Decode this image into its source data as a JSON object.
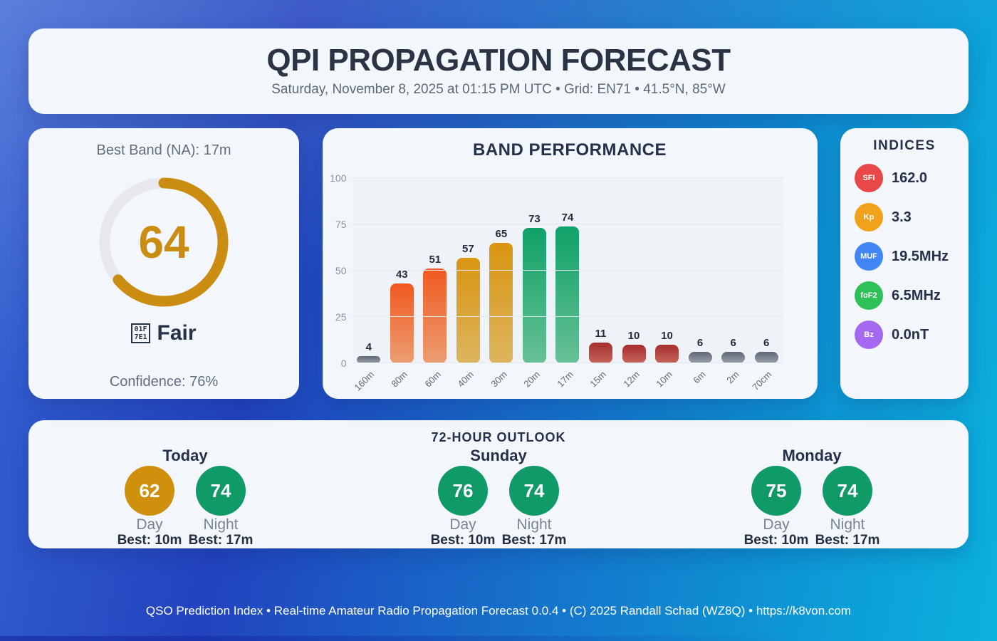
{
  "page": {
    "title": "QPI PROPAGATION FORECAST",
    "subtitle": "Saturday, November 8, 2025 at 01:15 PM UTC • Grid: EN71 • 41.5°N, 85°W",
    "footer": "QSO Prediction Index • Real-time Amateur Radio Propagation Forecast 0.0.4 • (C) 2025 Randall Schad (WZ8Q) • https://k8von.com"
  },
  "summary": {
    "best_band_label": "Best Band (NA): 17m",
    "qpi_value": "64",
    "gauge_percent": 64,
    "gauge_color": "#CB8C12",
    "gauge_track_color": "#E7E8ED",
    "status_emoji": {
      "name": "yellow-circle-emoji-tofu",
      "line1": "01F",
      "line2": "7E1"
    },
    "status_label": "Fair",
    "confidence_label": "Confidence: 76%"
  },
  "chart_data": {
    "type": "bar",
    "title": "BAND PERFORMANCE",
    "categories": [
      "160m",
      "80m",
      "60m",
      "40m",
      "30m",
      "20m",
      "17m",
      "15m",
      "12m",
      "10m",
      "6m",
      "2m",
      "70cm"
    ],
    "values": [
      4,
      43,
      51,
      57,
      65,
      73,
      74,
      11,
      10,
      10,
      6,
      6,
      6
    ],
    "bar_colors": [
      [
        "#5E6773",
        "#99A1AC"
      ],
      [
        "#F0581F",
        "#EC9E73"
      ],
      [
        "#F0581F",
        "#EC9E73"
      ],
      [
        "#D89510",
        "#DDB55F"
      ],
      [
        "#D89510",
        "#DDB55F"
      ],
      [
        "#0FA169",
        "#68C096"
      ],
      [
        "#0FA169",
        "#68C096"
      ],
      [
        "#A62E2E",
        "#C5655C"
      ],
      [
        "#A62E2E",
        "#C5655C"
      ],
      [
        "#A62E2E",
        "#C5655C"
      ],
      [
        "#5E6773",
        "#99A1AC"
      ],
      [
        "#5E6773",
        "#99A1AC"
      ],
      [
        "#5E6773",
        "#99A1AC"
      ]
    ],
    "xlabel": "",
    "ylabel": "",
    "ylim": [
      0,
      100
    ],
    "yticks": [
      0,
      25,
      50,
      75,
      100
    ],
    "grid": true,
    "legend": false
  },
  "indices": {
    "title": "INDICES",
    "items": [
      {
        "abbr": "SFI",
        "color": "#E94848",
        "value": "162.0"
      },
      {
        "abbr": "Kp",
        "color": "#F2A11B",
        "value": "3.3"
      },
      {
        "abbr": "MUF",
        "color": "#4285F4",
        "value": "19.5MHz"
      },
      {
        "abbr": "foF2",
        "color": "#2EC157",
        "value": "6.5MHz"
      },
      {
        "abbr": "Bz",
        "color": "#A568F0",
        "value": "0.0nT"
      }
    ]
  },
  "outlook": {
    "title": "72-HOUR OUTLOOK",
    "day_label": "Day",
    "night_label": "Night",
    "days": [
      {
        "name": "Today",
        "day_value": "62",
        "day_color": "#CF900E",
        "day_best": "Best: 10m",
        "night_value": "74",
        "night_color": "#0F9A67",
        "night_best": "Best: 17m"
      },
      {
        "name": "Sunday",
        "day_value": "76",
        "day_color": "#0F9A67",
        "day_best": "Best: 10m",
        "night_value": "74",
        "night_color": "#0F9A67",
        "night_best": "Best: 17m"
      },
      {
        "name": "Monday",
        "day_value": "75",
        "day_color": "#0F9A67",
        "day_best": "Best: 10m",
        "night_value": "74",
        "night_color": "#0F9A67",
        "night_best": "Best: 17m"
      }
    ]
  },
  "theme": {
    "card_bg": "#F3F6FA",
    "heading_color": "#2A3444",
    "muted_color": "#5D6878",
    "background_gradient": [
      "#3A6BD7",
      "#2243BF",
      "#0BB2DE"
    ]
  }
}
